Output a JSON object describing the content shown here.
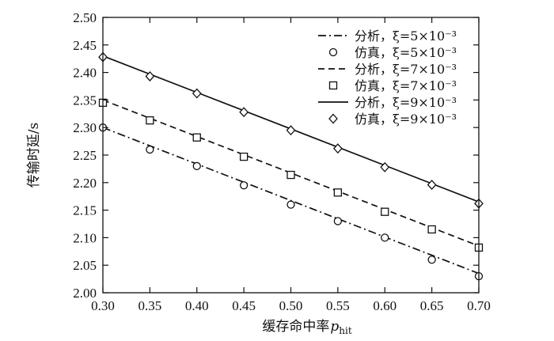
{
  "chart_data": {
    "type": "line",
    "xlabel": "缓存命中率",
    "xlabel_var": "p",
    "xlabel_sub": "hit",
    "ylabel": "传输时延/s",
    "xlim": [
      0.3,
      0.7
    ],
    "ylim": [
      2.0,
      2.5
    ],
    "x_ticks": [
      "0.30",
      "0.35",
      "0.40",
      "0.45",
      "0.50",
      "0.55",
      "0.60",
      "0.65",
      "0.70"
    ],
    "y_ticks": [
      "2.00",
      "2.05",
      "2.10",
      "2.15",
      "2.20",
      "2.25",
      "2.30",
      "2.35",
      "2.40",
      "2.45",
      "2.50"
    ],
    "grid": false,
    "legend_position": "top-right",
    "series": [
      {
        "name": "分析，ξ=5×10⁻³",
        "kind": "line",
        "style": "dashdot",
        "x": [
          0.3,
          0.7
        ],
        "y": [
          2.3,
          2.035
        ]
      },
      {
        "name": "仿真，ξ=5×10⁻³",
        "kind": "markers",
        "marker": "circle",
        "x": [
          0.3,
          0.35,
          0.4,
          0.45,
          0.5,
          0.55,
          0.6,
          0.65,
          0.7
        ],
        "y": [
          2.3,
          2.26,
          2.23,
          2.195,
          2.16,
          2.13,
          2.1,
          2.06,
          2.03
        ]
      },
      {
        "name": "分析，ξ=7×10⁻³",
        "kind": "line",
        "style": "dashed",
        "x": [
          0.3,
          0.7
        ],
        "y": [
          2.35,
          2.085
        ]
      },
      {
        "name": "仿真，ξ=7×10⁻³",
        "kind": "markers",
        "marker": "square",
        "x": [
          0.3,
          0.35,
          0.4,
          0.45,
          0.5,
          0.55,
          0.6,
          0.65,
          0.7
        ],
        "y": [
          2.345,
          2.313,
          2.282,
          2.247,
          2.214,
          2.182,
          2.147,
          2.115,
          2.082
        ]
      },
      {
        "name": "分析，ξ=9×10⁻³",
        "kind": "line",
        "style": "solid",
        "x": [
          0.3,
          0.7
        ],
        "y": [
          2.43,
          2.165
        ]
      },
      {
        "name": "仿真，ξ=9×10⁻³",
        "kind": "markers",
        "marker": "diamond",
        "x": [
          0.3,
          0.35,
          0.4,
          0.45,
          0.5,
          0.55,
          0.6,
          0.65,
          0.7
        ],
        "y": [
          2.428,
          2.393,
          2.362,
          2.328,
          2.295,
          2.262,
          2.228,
          2.196,
          2.162
        ]
      }
    ]
  }
}
